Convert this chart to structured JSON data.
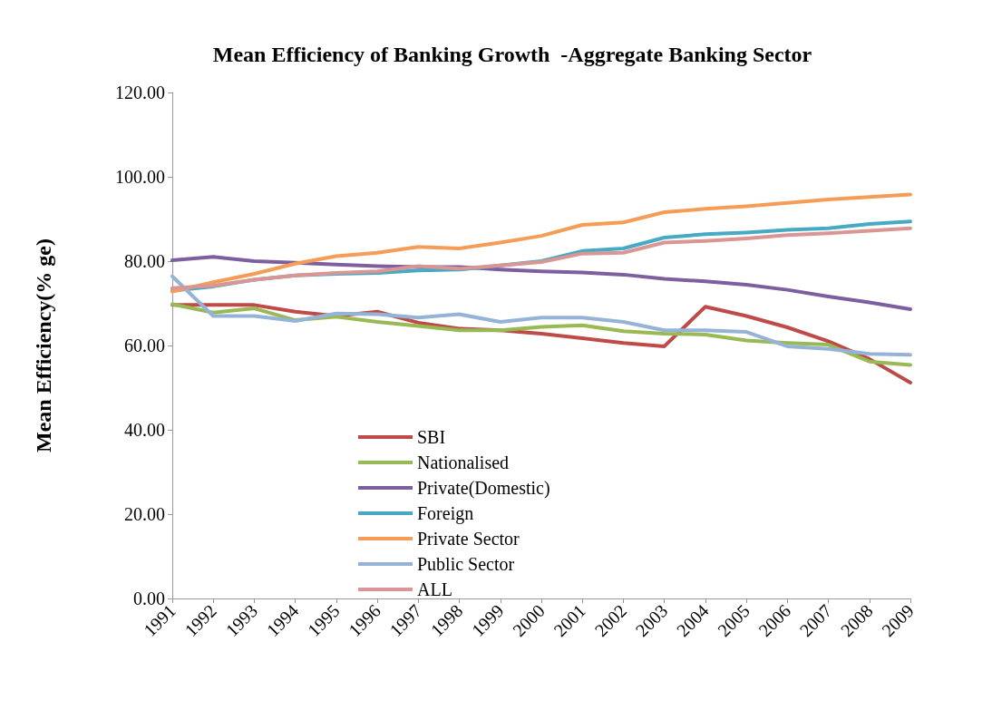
{
  "chart_data": {
    "type": "line",
    "title": "Mean Efficiency of Banking Growth  -Aggregate Banking Sector",
    "ylabel": "Mean Efficiency(% ge)",
    "categories": [
      "1991",
      "1992",
      "1993",
      "1994",
      "1995",
      "1996",
      "1997",
      "1998",
      "1999",
      "2000",
      "2001",
      "2002",
      "2003",
      "2004",
      "2005",
      "2006",
      "2007",
      "2008",
      "2009"
    ],
    "series": [
      {
        "name": "SBI",
        "color": "#be4b48",
        "values": [
          69.6,
          69.6,
          69.6,
          68,
          67,
          68,
          65.4,
          64,
          63.6,
          62.8,
          61.7,
          60.6,
          59.8,
          69.2,
          67,
          64.3,
          61,
          56.8,
          51.2
        ]
      },
      {
        "name": "Nationalised",
        "color": "#98b954",
        "values": [
          69.8,
          67.8,
          68.8,
          66,
          66.8,
          65.6,
          64.6,
          63.6,
          63.6,
          64.4,
          64.8,
          63.4,
          62.8,
          62.6,
          61.2,
          60.6,
          60.2,
          56.2,
          55.4
        ]
      },
      {
        "name": "Private(Domestic)",
        "color": "#7d5fa0",
        "values": [
          80.2,
          81,
          80,
          79.6,
          79.2,
          78.8,
          78.6,
          78.6,
          78,
          77.6,
          77.3,
          76.8,
          75.8,
          75.2,
          74.4,
          73.2,
          71.6,
          70.2,
          68.6
        ]
      },
      {
        "name": "Foreign",
        "color": "#46aac5",
        "values": [
          73,
          74,
          75.6,
          76.6,
          77,
          77.2,
          77.8,
          78,
          79,
          80,
          82.4,
          83,
          85.6,
          86.4,
          86.8,
          87.4,
          87.8,
          88.8,
          89.4
        ]
      },
      {
        "name": "Private Sector",
        "color": "#f59d56",
        "values": [
          72.8,
          75,
          77,
          79.4,
          81.2,
          82,
          83.4,
          83,
          84.4,
          86,
          88.6,
          89.2,
          91.6,
          92.4,
          93,
          93.8,
          94.6,
          95.2,
          95.8
        ]
      },
      {
        "name": "Public Sector",
        "color": "#95b3d7",
        "values": [
          76.4,
          67,
          67,
          65.8,
          67.6,
          67.4,
          66.6,
          67.4,
          65.6,
          66.6,
          66.6,
          65.6,
          63.6,
          63.6,
          63.2,
          59.8,
          59.2,
          58,
          57.8
        ]
      },
      {
        "name": "ALL",
        "color": "#d99694",
        "values": [
          73.6,
          74.2,
          75.6,
          76.6,
          77.2,
          77.6,
          78.8,
          78.2,
          79,
          79.8,
          81.8,
          82,
          84.4,
          84.8,
          85.4,
          86.2,
          86.6,
          87.2,
          87.8
        ]
      }
    ],
    "ylim": [
      0,
      120
    ],
    "yticks": [
      {
        "value": 0,
        "label": "0.00"
      },
      {
        "value": 20,
        "label": "20.00"
      },
      {
        "value": 40,
        "label": "40.00"
      },
      {
        "value": 60,
        "label": "60.00"
      },
      {
        "value": 80,
        "label": "80.00"
      },
      {
        "value": 100,
        "label": "100.00"
      },
      {
        "value": 120,
        "label": "120.00"
      }
    ],
    "grid": false,
    "legend": "bottom",
    "marker": "none",
    "line_style": "solid"
  }
}
